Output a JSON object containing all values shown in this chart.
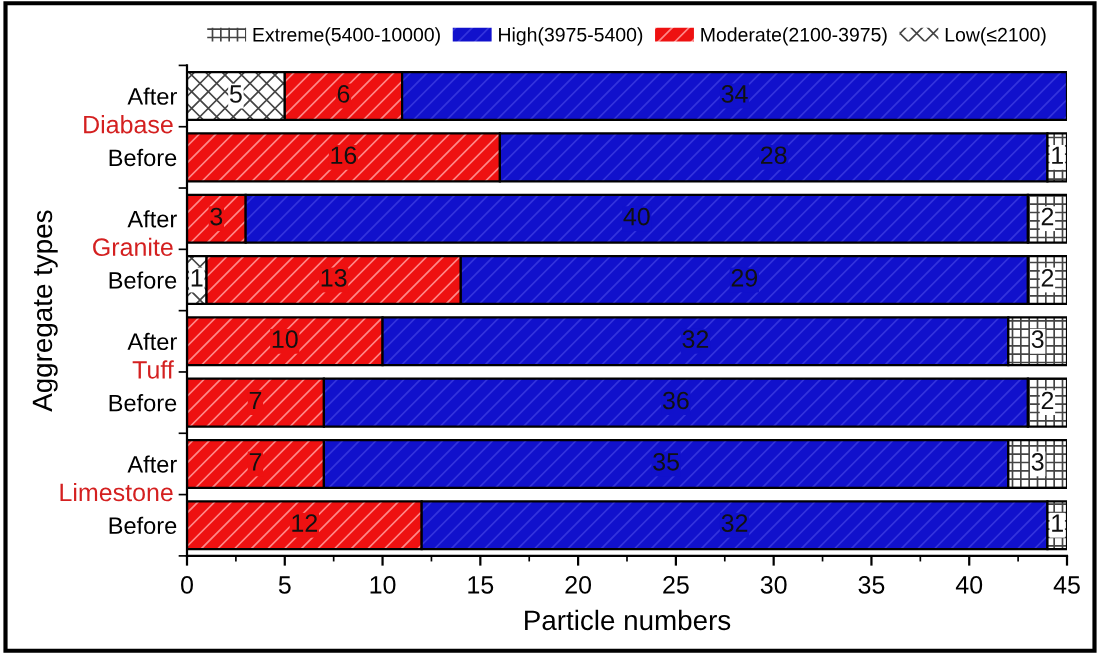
{
  "chart_data": {
    "type": "bar",
    "orientation": "horizontal",
    "stacked": true,
    "xlabel": "Particle numbers",
    "ylabel": "Aggregate types",
    "categories": [
      "After",
      "Before",
      "After",
      "Before",
      "After",
      "Before",
      "After",
      "Before"
    ],
    "series": [
      {
        "name": "Low(≤2100)",
        "color": "#ffffff",
        "values": [
          5,
          null,
          null,
          1,
          null,
          null,
          null,
          null
        ]
      },
      {
        "name": "Moderate(2100-3975)",
        "color": "#ee1111",
        "values": [
          6,
          16,
          3,
          13,
          10,
          7,
          7,
          12
        ]
      },
      {
        "name": "High(3975-5400)",
        "color": "#1111cc",
        "values": [
          34,
          28,
          40,
          29,
          32,
          36,
          35,
          32
        ]
      },
      {
        "name": "Extreme(5400-10000)",
        "color": "#ffffff",
        "values": [
          null,
          1,
          2,
          2,
          3,
          2,
          3,
          1
        ]
      }
    ],
    "annotations": [
      "Diabase",
      "Granite",
      "Tuff",
      "Limestone"
    ],
    "xlim": [
      0,
      45
    ],
    "xticks": [
      0,
      5,
      10,
      15,
      20,
      25,
      30,
      35,
      40,
      45
    ],
    "data_labels": true,
    "legend": "top",
    "grid": false
  }
}
